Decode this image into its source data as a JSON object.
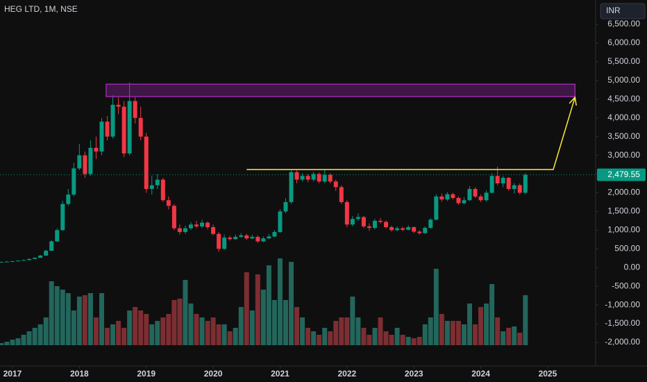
{
  "chart_data": {
    "type": "candlestick",
    "title": "HEG LTD, 1M, NSE",
    "currency": "INR",
    "x": [
      -2,
      -1,
      0,
      1,
      2,
      3,
      4,
      5,
      6,
      7,
      8,
      9,
      10,
      11,
      12,
      13,
      14,
      15,
      16,
      17,
      18,
      19,
      20,
      21,
      22,
      23,
      24,
      25,
      26,
      27,
      28,
      29,
      30,
      31,
      32,
      33,
      34,
      35,
      36,
      37,
      38,
      39,
      40,
      41,
      42,
      43,
      44,
      45,
      46,
      47,
      48,
      49,
      50,
      51,
      52,
      53,
      54,
      55,
      56,
      57,
      58,
      59,
      60,
      61,
      62,
      63,
      64,
      65,
      66,
      67,
      68,
      69,
      70,
      71,
      72,
      73,
      74,
      75,
      76,
      77,
      78,
      79,
      80,
      81,
      82,
      83,
      84,
      85,
      86,
      87,
      88,
      89,
      90,
      91,
      92
    ],
    "open": [
      140,
      150,
      160,
      170,
      185,
      200,
      230,
      260,
      320,
      450,
      700,
      1000,
      1700,
      1950,
      2650,
      3000,
      2500,
      3200,
      3100,
      3900,
      3500,
      4350,
      4300,
      3050,
      4450,
      4000,
      3500,
      2100,
      2200,
      2350,
      1800,
      1650,
      1050,
      950,
      1050,
      1150,
      1100,
      1200,
      1080,
      900,
      500,
      800,
      760,
      820,
      860,
      780,
      820,
      700,
      780,
      830,
      950,
      1500,
      1750,
      2550,
      2350,
      2450,
      2350,
      2500,
      2300,
      2480,
      2300,
      2150,
      1750,
      1150,
      1300,
      1350,
      1100,
      1060,
      1250,
      1220,
      1080,
      1000,
      1050,
      1010,
      1080,
      960,
      920,
      1060,
      1280,
      1900,
      1820,
      1960,
      1860,
      1720,
      1800,
      2100,
      1900,
      1800,
      2000,
      2450,
      2250,
      2400,
      2100,
      2200,
      2000
    ],
    "high": [
      160,
      170,
      180,
      195,
      215,
      240,
      275,
      340,
      480,
      730,
      1050,
      1780,
      2100,
      2800,
      3300,
      3100,
      3400,
      3500,
      4000,
      4050,
      4600,
      4550,
      4450,
      4950,
      4550,
      4300,
      3600,
      2450,
      2500,
      2400,
      1900,
      1700,
      1150,
      1120,
      1220,
      1250,
      1280,
      1230,
      1150,
      950,
      880,
      850,
      880,
      920,
      900,
      880,
      860,
      830,
      900,
      1000,
      1560,
      1850,
      2600,
      2600,
      2520,
      2500,
      2560,
      2540,
      2620,
      2520,
      2350,
      2200,
      1800,
      1380,
      1450,
      1380,
      1180,
      1300,
      1320,
      1260,
      1120,
      1100,
      1090,
      1130,
      1100,
      1000,
      1100,
      1320,
      1960,
      1980,
      2020,
      2000,
      1900,
      1880,
      2180,
      2150,
      1950,
      2060,
      2520,
      2700,
      2450,
      2420,
      2260,
      2250,
      2520
    ],
    "low": [
      135,
      145,
      155,
      165,
      180,
      195,
      220,
      255,
      310,
      440,
      680,
      980,
      1650,
      1900,
      2600,
      2400,
      2450,
      2900,
      3000,
      3400,
      3450,
      4100,
      2950,
      3000,
      3850,
      3400,
      2000,
      1950,
      2100,
      1750,
      1550,
      1000,
      880,
      900,
      1000,
      1050,
      1060,
      1020,
      860,
      420,
      480,
      720,
      740,
      800,
      740,
      760,
      660,
      680,
      760,
      810,
      930,
      1450,
      1700,
      2250,
      2300,
      2280,
      2300,
      2250,
      2250,
      2250,
      2050,
      1700,
      1080,
      1100,
      1250,
      1050,
      980,
      1020,
      1180,
      1040,
      960,
      970,
      970,
      990,
      920,
      880,
      900,
      1040,
      1260,
      1760,
      1780,
      1820,
      1680,
      1690,
      1780,
      1860,
      1750,
      1760,
      1980,
      2200,
      2150,
      2050,
      1980,
      1950,
      1960
    ],
    "close": [
      150,
      160,
      170,
      185,
      200,
      230,
      260,
      320,
      450,
      700,
      1000,
      1700,
      1950,
      2650,
      3000,
      2500,
      3200,
      3100,
      3900,
      3500,
      4350,
      4300,
      3050,
      4450,
      4000,
      3500,
      2100,
      2200,
      2350,
      1800,
      1650,
      1050,
      950,
      1050,
      1150,
      1100,
      1200,
      1080,
      900,
      500,
      800,
      760,
      820,
      860,
      780,
      820,
      700,
      780,
      830,
      950,
      1500,
      1750,
      2550,
      2350,
      2450,
      2350,
      2500,
      2300,
      2480,
      2300,
      2150,
      1750,
      1150,
      1300,
      1350,
      1100,
      1060,
      1250,
      1220,
      1080,
      1000,
      1050,
      1010,
      1080,
      960,
      920,
      1060,
      1280,
      1900,
      1820,
      1960,
      1860,
      1720,
      1800,
      2100,
      1900,
      1800,
      2000,
      2450,
      2250,
      2400,
      2100,
      2200,
      2000,
      2479.55
    ],
    "volume": [
      3,
      5,
      8,
      10,
      15,
      20,
      25,
      30,
      40,
      92,
      85,
      80,
      75,
      50,
      70,
      72,
      75,
      40,
      75,
      25,
      30,
      35,
      25,
      50,
      55,
      50,
      45,
      30,
      35,
      40,
      45,
      65,
      67,
      94,
      60,
      45,
      40,
      35,
      40,
      30,
      30,
      20,
      25,
      55,
      105,
      50,
      102,
      80,
      115,
      65,
      125,
      65,
      120,
      55,
      40,
      25,
      20,
      15,
      25,
      20,
      35,
      40,
      40,
      70,
      40,
      25,
      15,
      25,
      40,
      20,
      15,
      25,
      15,
      12,
      10,
      12,
      30,
      40,
      110,
      45,
      35,
      35,
      35,
      30,
      60,
      30,
      55,
      60,
      88,
      40,
      20,
      25,
      27,
      18,
      72
    ],
    "up_color": "#089981",
    "down_color": "#f23645",
    "volume_up_color": "#22665c",
    "volume_down_color": "#7c2e32",
    "xlim": [
      -2.24,
      104.6
    ],
    "ylim": [
      -2631,
      7150
    ],
    "y2lim": [
      0,
      150
    ],
    "xticks": [
      {
        "value": 0,
        "label": "2017"
      },
      {
        "value": 12,
        "label": "2018"
      },
      {
        "value": 24,
        "label": "2019"
      },
      {
        "value": 36,
        "label": "2020"
      },
      {
        "value": 48,
        "label": "2021"
      },
      {
        "value": 60,
        "label": "2022"
      },
      {
        "value": 72,
        "label": "2023"
      },
      {
        "value": 84,
        "label": "2024"
      },
      {
        "value": 96,
        "label": "2025"
      }
    ],
    "yticks": [
      {
        "value": 6500,
        "label": "6,500.00"
      },
      {
        "value": 6000,
        "label": "6,000.00"
      },
      {
        "value": 5500,
        "label": "5,500.00"
      },
      {
        "value": 5000,
        "label": "5,000.00"
      },
      {
        "value": 4500,
        "label": "4,500.00"
      },
      {
        "value": 4000,
        "label": "4,000.00"
      },
      {
        "value": 3500,
        "label": "3,500.00"
      },
      {
        "value": 3000,
        "label": "3,000.00"
      },
      {
        "value": 2500,
        "label": "2,500.00"
      },
      {
        "value": 2000,
        "label": "2,000.00"
      },
      {
        "value": 1500,
        "label": "1,500.00"
      },
      {
        "value": 1000,
        "label": "1,000.00"
      },
      {
        "value": 500,
        "label": "500.00"
      },
      {
        "value": 0,
        "label": "0.00"
      },
      {
        "value": -500,
        "label": "-500.00"
      },
      {
        "value": -1000,
        "label": "-1,000.00"
      },
      {
        "value": -1500,
        "label": "-1,500.00"
      },
      {
        "value": -2000,
        "label": "-2,000.00"
      }
    ],
    "last_price": {
      "value": 2479.55,
      "label": "2,479.55",
      "color": "#089981"
    },
    "zone": {
      "x": [
        16.8,
        100.9
      ],
      "y": [
        4570,
        4900
      ],
      "color": "#9c27b0"
    },
    "trend_line": {
      "x": [
        42,
        97,
        100.9
      ],
      "y": [
        2620,
        2620,
        4550
      ],
      "color": "#ffeb3b"
    }
  }
}
